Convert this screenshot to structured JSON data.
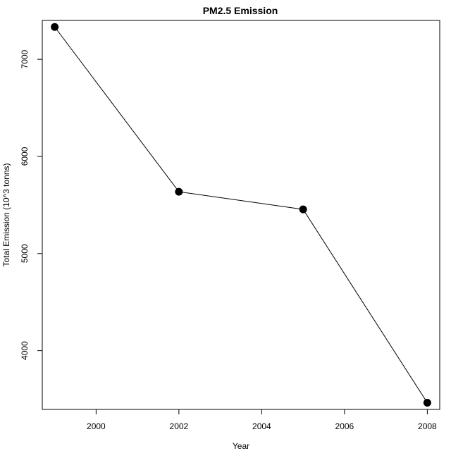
{
  "chart_data": {
    "type": "line",
    "title": "PM2.5 Emission",
    "xlabel": "Year",
    "ylabel": "Total Emission (10^3 tonns)",
    "x": [
      1999,
      2002,
      2005,
      2008
    ],
    "series": [
      {
        "values": [
          7332.97,
          5635.78,
          5454.7,
          3464.21
        ]
      }
    ],
    "xlim": [
      1998.7,
      2008.3
    ],
    "ylim": [
      3395,
      7400
    ],
    "xticks": [
      2000,
      2002,
      2004,
      2006,
      2008
    ],
    "yticks": [
      4000,
      5000,
      6000,
      7000
    ],
    "grid": false,
    "markers": "filled-circle",
    "line_color": "#000000",
    "marker_color": "#000000"
  }
}
